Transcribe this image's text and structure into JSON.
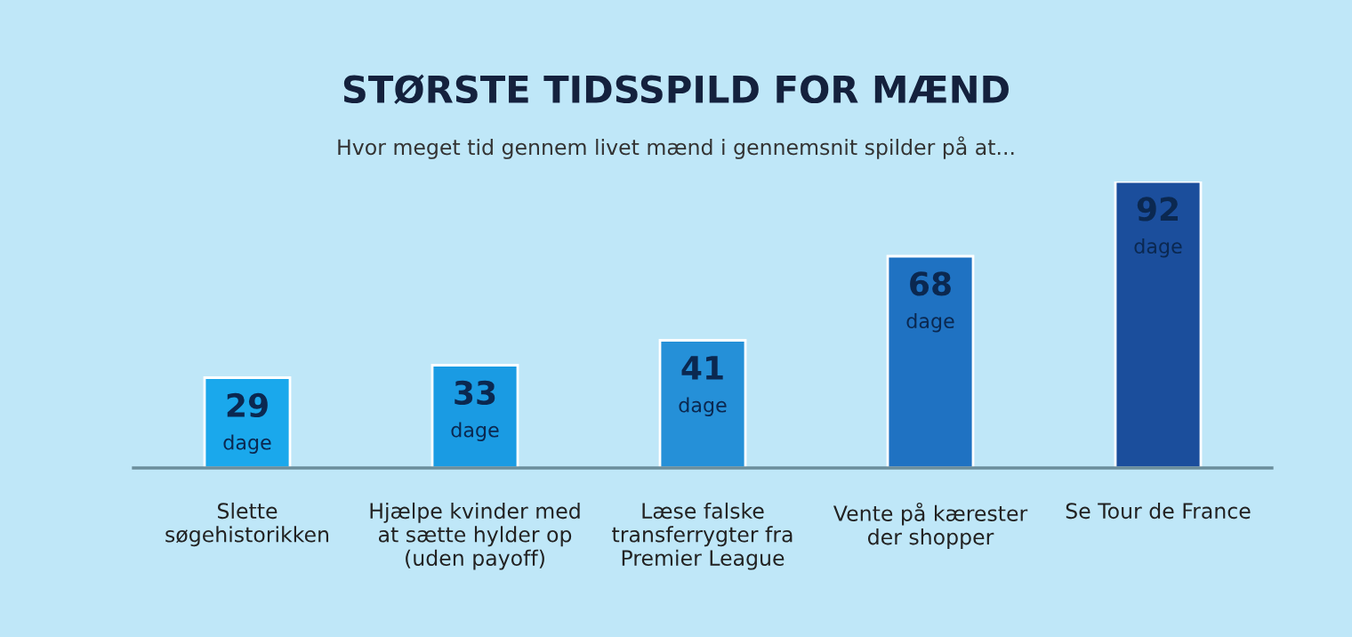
{
  "chart_data": {
    "type": "bar",
    "title": "STØRSTE TIDSSPILD FOR MÆND",
    "subtitle": "Hvor meget tid gennem livet mænd i gennemsnit spilder på at...",
    "categories": [
      "Slette\nsøgehistorikken",
      "Hjælpe kvinder med\nat sætte hylder op\n(uden payoff)",
      "Læse falske\ntransferrygter fra\nPremier League",
      "Vente på kærester\nder shopper",
      "Se Tour de France"
    ],
    "values": [
      29,
      33,
      41,
      68,
      92
    ],
    "colors": [
      "#1aa8ec",
      "#1a9be3",
      "#2590d8",
      "#1f72c2",
      "#1b4e9c"
    ],
    "value_labels": [
      "29\ndage",
      "33\ndage",
      "41\ndage",
      "68\ndage",
      "92\ndage"
    ],
    "grid": false,
    "legend": false
  }
}
